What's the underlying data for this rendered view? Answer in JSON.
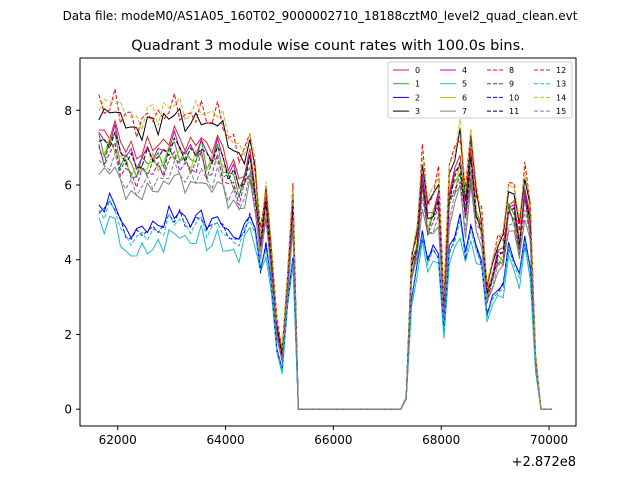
{
  "header": {
    "datafile": "Data file: modeM0/AS1A05_160T02_9000002710_18188cztM0_level2_quad_clean.evt"
  },
  "chart_data": {
    "type": "line",
    "title": "Quadrant 3 module wise count rates with 100.0s bins.",
    "xlabel": "",
    "ylabel": "",
    "x_offset_label": "+2.872e8",
    "xlim": [
      61300,
      70500
    ],
    "ylim": [
      -0.45,
      9.4
    ],
    "x_ticks": [
      62000,
      64000,
      66000,
      68000,
      70000
    ],
    "x_tick_labels": [
      "62000",
      "64000",
      "66000",
      "68000",
      "70000"
    ],
    "y_ticks": [
      0,
      2,
      4,
      6,
      8
    ],
    "y_tick_labels": [
      "0",
      "2",
      "4",
      "6",
      "8"
    ],
    "legend_position": "top-right",
    "series": [
      {
        "name": "0",
        "color": "#d62728",
        "dash": "solid"
      },
      {
        "name": "1",
        "color": "#2ca02c",
        "dash": "solid"
      },
      {
        "name": "2",
        "color": "#0000ff",
        "dash": "solid"
      },
      {
        "name": "3",
        "color": "#000000",
        "dash": "solid"
      },
      {
        "name": "4",
        "color": "#bf00bf",
        "dash": "solid"
      },
      {
        "name": "5",
        "color": "#17becf",
        "dash": "solid"
      },
      {
        "name": "6",
        "color": "#bcbd22",
        "dash": "solid"
      },
      {
        "name": "7",
        "color": "#7f7f7f",
        "dash": "solid"
      },
      {
        "name": "8",
        "color": "#ff0000",
        "dash": "dashed"
      },
      {
        "name": "9",
        "color": "#008000",
        "dash": "dashed"
      },
      {
        "name": "10",
        "color": "#0000ff",
        "dash": "dashed"
      },
      {
        "name": "11",
        "color": "#000000",
        "dash": "dashed"
      },
      {
        "name": "12",
        "color": "#bf00bf",
        "dash": "dashed"
      },
      {
        "name": "13",
        "color": "#17becf",
        "dash": "dashed"
      },
      {
        "name": "14",
        "color": "#bcbd22",
        "dash": "dashed"
      },
      {
        "name": "15",
        "color": "#7f7f7f",
        "dash": "dashed"
      }
    ],
    "segments": [
      {
        "start": 61650,
        "end": 65350,
        "step": 100,
        "active": true
      },
      {
        "start": 65450,
        "end": 67350,
        "step": 100,
        "active": false
      },
      {
        "start": 67450,
        "end": 70050,
        "step": 100,
        "active": true
      }
    ],
    "envelope": {
      "base": [
        7.8,
        7.6,
        7.8,
        7.9,
        7.5,
        7.6,
        7.4,
        7.2,
        7.3,
        7.5,
        7.6,
        7.4,
        7.5,
        7.7,
        7.8,
        7.6,
        7.5,
        7.4,
        7.6,
        7.7,
        7.3,
        7.5,
        7.6,
        7.3,
        7.0,
        6.8,
        6.5,
        6.6,
        6.9,
        6.2,
        4.5,
        5.6,
        4.2,
        2.3,
        1.5,
        3.5,
        5.6,
        0,
        0,
        0,
        0,
        0,
        0,
        0,
        0,
        0,
        0,
        0,
        0,
        0,
        0,
        0,
        0,
        0,
        0,
        0,
        0,
        0.3,
        3.9,
        4.5,
        6.6,
        5.2,
        5.6,
        6.0,
        2.8,
        6.3,
        6.5,
        7.1,
        5.6,
        7.0,
        5.6,
        5.0,
        3.1,
        3.8,
        4.3,
        4.4,
        5.8,
        5.6,
        4.7,
        6.2,
        5.2,
        1.4
      ],
      "ratio_low": [
        0.64,
        0.64,
        0.65,
        0.64,
        0.6,
        0.54,
        0.56,
        0.58,
        0.59,
        0.57,
        0.56,
        0.6,
        0.58,
        0.61,
        0.6,
        0.62,
        0.6,
        0.61,
        0.59,
        0.62,
        0.6,
        0.58,
        0.62,
        0.6,
        0.59,
        0.63,
        0.62,
        0.68,
        0.72,
        0.7,
        0.8,
        0.75,
        0.73,
        0.66,
        0.65,
        0.77,
        0.69,
        1,
        1,
        1,
        1,
        1,
        1,
        1,
        1,
        1,
        1,
        1,
        1,
        1,
        1,
        1,
        1,
        1,
        1,
        1,
        1,
        0.9,
        0.72,
        0.79,
        0.66,
        0.73,
        0.7,
        0.64,
        0.7,
        0.6,
        0.67,
        0.66,
        0.68,
        0.66,
        0.7,
        0.75,
        0.78,
        0.72,
        0.7,
        0.7,
        0.69,
        0.67,
        0.7,
        0.68,
        0.69,
        0.72
      ],
      "weights": [
        0.98,
        0.94,
        0.76,
        1.04,
        0.96,
        0.7,
        0.93,
        0.86,
        1.06,
        0.92,
        0.75,
        0.95,
        0.91,
        0.74,
        1.07,
        0.88
      ]
    }
  }
}
